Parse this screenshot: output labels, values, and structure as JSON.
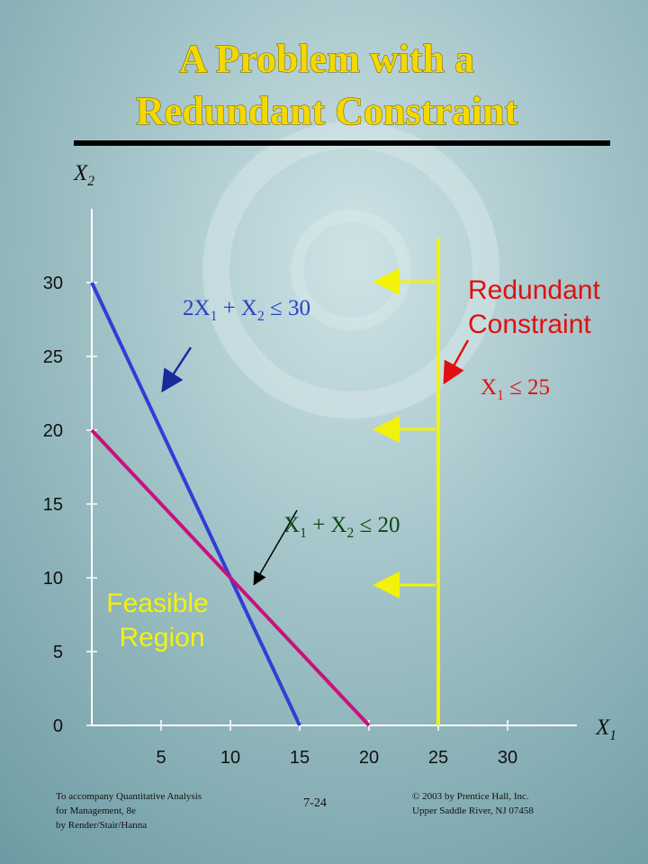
{
  "chart_data": {
    "type": "line",
    "title": [
      "A Problem with a",
      "Redundant Constraint"
    ],
    "x_label": [
      "X",
      "1"
    ],
    "y_label": [
      "X",
      "2"
    ],
    "xlim": [
      0,
      35
    ],
    "ylim": [
      0,
      35
    ],
    "xticks": [
      5,
      10,
      15,
      20,
      25,
      30
    ],
    "yticks": [
      0,
      5,
      10,
      15,
      20,
      25,
      30
    ],
    "series": [
      {
        "color": "#2f3fd6",
        "x": [
          0,
          15
        ],
        "values": [
          30,
          0
        ],
        "label": [
          "2X",
          "1",
          " + X",
          "2",
          " ≤ 30"
        ],
        "label_color": "#2a3fc8"
      },
      {
        "color": "#c8127a",
        "x": [
          0,
          20
        ],
        "values": [
          20,
          0
        ],
        "label": [
          "X",
          "1",
          " + X",
          "2",
          " ≤ 20"
        ],
        "label_color": "#0d4a12"
      },
      {
        "color": "#f2f20a",
        "x": [
          25,
          25
        ],
        "values": [
          0,
          33
        ],
        "label": [
          "X",
          "1",
          " ≤ 25"
        ],
        "label_color": "#e01010"
      }
    ],
    "annotations": [
      {
        "lines": [
          "Feasible",
          "Region"
        ],
        "color": "#f2f20a"
      },
      {
        "lines": [
          "Redundant",
          "Constraint"
        ],
        "color": "#e01010"
      }
    ]
  },
  "footer": {
    "left": [
      "To accompany Quantitative Analysis",
      "for Management, 8e",
      "by Render/Stair/Hanna"
    ],
    "center": "7-24",
    "right": [
      "© 2003 by Prentice Hall, Inc.",
      "Upper Saddle River, NJ 07458"
    ]
  }
}
